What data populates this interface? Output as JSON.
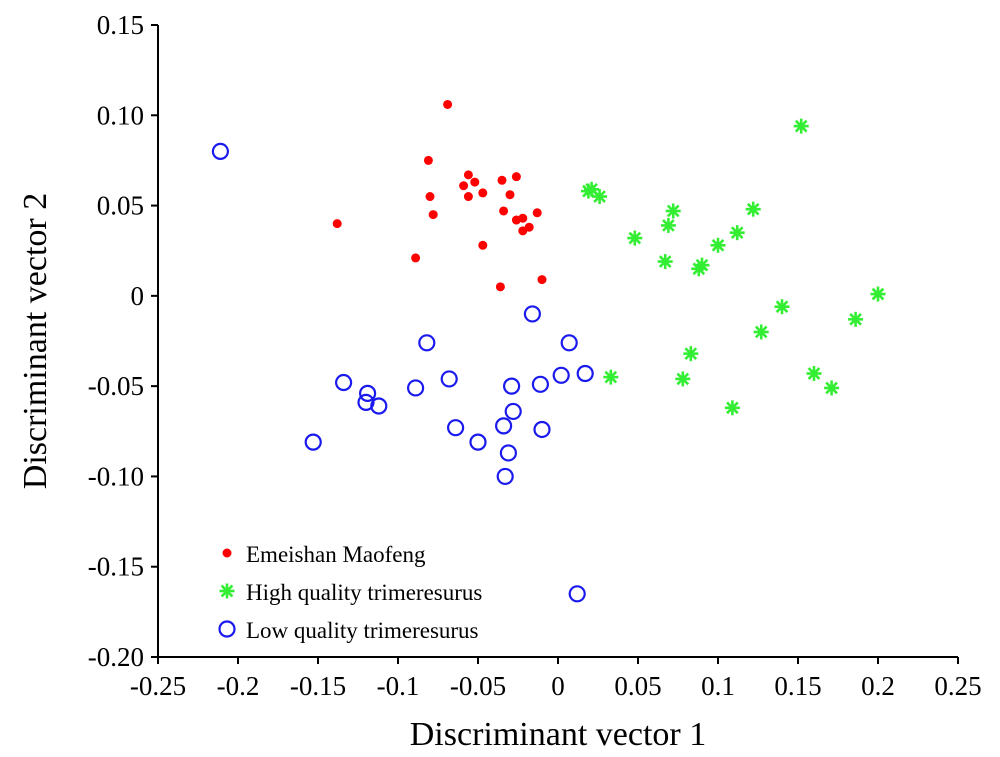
{
  "chart_data": {
    "type": "scatter",
    "title": "",
    "xlabel": "Discriminant vector 1",
    "ylabel": "Discriminant vector 2",
    "xlim": [
      -0.25,
      0.25
    ],
    "ylim": [
      -0.2,
      0.15
    ],
    "xticks": [
      "-0.25",
      "-0.2",
      "-0.15",
      "-0.1",
      "-0.05",
      "0",
      "0.05",
      "0.1",
      "0.15",
      "0.2",
      "0.25"
    ],
    "xtick_values": [
      -0.25,
      -0.2,
      -0.15,
      -0.1,
      -0.05,
      0,
      0.05,
      0.1,
      0.15,
      0.2,
      0.25
    ],
    "yticks": [
      "0.15",
      "0.10",
      "0.05",
      "0",
      "-0.05",
      "-0.10",
      "-0.15",
      "-0.20"
    ],
    "ytick_values": [
      0.15,
      0.1,
      0.05,
      0,
      -0.05,
      -0.1,
      -0.15,
      -0.2
    ],
    "grid": false,
    "legend_position": "bottom-left",
    "series": [
      {
        "name": "Emeishan Maofeng",
        "marker": "dot",
        "color": "#ff0000",
        "points": [
          [
            -0.069,
            0.106
          ],
          [
            -0.081,
            0.075
          ],
          [
            -0.056,
            0.067
          ],
          [
            -0.052,
            0.063
          ],
          [
            -0.059,
            0.061
          ],
          [
            -0.035,
            0.064
          ],
          [
            -0.026,
            0.066
          ],
          [
            -0.08,
            0.055
          ],
          [
            -0.056,
            0.055
          ],
          [
            -0.047,
            0.057
          ],
          [
            -0.03,
            0.056
          ],
          [
            -0.034,
            0.047
          ],
          [
            -0.078,
            0.045
          ],
          [
            -0.026,
            0.042
          ],
          [
            -0.022,
            0.043
          ],
          [
            -0.013,
            0.046
          ],
          [
            -0.138,
            0.04
          ],
          [
            -0.018,
            0.038
          ],
          [
            -0.022,
            0.036
          ],
          [
            -0.047,
            0.028
          ],
          [
            -0.089,
            0.021
          ],
          [
            -0.01,
            0.009
          ],
          [
            -0.036,
            0.005
          ]
        ]
      },
      {
        "name": "High quality trimeresurus",
        "marker": "star",
        "color": "#33ee33",
        "points": [
          [
            0.152,
            0.094
          ],
          [
            0.019,
            0.058
          ],
          [
            0.021,
            0.059
          ],
          [
            0.026,
            0.055
          ],
          [
            0.072,
            0.047
          ],
          [
            0.122,
            0.048
          ],
          [
            0.069,
            0.039
          ],
          [
            0.112,
            0.035
          ],
          [
            0.048,
            0.032
          ],
          [
            0.1,
            0.028
          ],
          [
            0.067,
            0.019
          ],
          [
            0.09,
            0.017
          ],
          [
            0.088,
            0.015
          ],
          [
            0.2,
            0.001
          ],
          [
            0.14,
            -0.006
          ],
          [
            0.186,
            -0.013
          ],
          [
            0.127,
            -0.02
          ],
          [
            0.083,
            -0.032
          ],
          [
            0.033,
            -0.045
          ],
          [
            0.078,
            -0.046
          ],
          [
            0.16,
            -0.043
          ],
          [
            0.171,
            -0.051
          ],
          [
            0.109,
            -0.062
          ]
        ]
      },
      {
        "name": "Low quality trimeresurus",
        "marker": "circle",
        "color": "#1a1aee",
        "points": [
          [
            -0.211,
            0.08
          ],
          [
            -0.016,
            -0.01
          ],
          [
            -0.082,
            -0.026
          ],
          [
            0.007,
            -0.026
          ],
          [
            -0.134,
            -0.048
          ],
          [
            -0.068,
            -0.046
          ],
          [
            -0.089,
            -0.051
          ],
          [
            -0.119,
            -0.054
          ],
          [
            0.017,
            -0.043
          ],
          [
            0.002,
            -0.044
          ],
          [
            -0.029,
            -0.05
          ],
          [
            -0.011,
            -0.049
          ],
          [
            -0.12,
            -0.059
          ],
          [
            -0.112,
            -0.061
          ],
          [
            -0.028,
            -0.064
          ],
          [
            -0.064,
            -0.073
          ],
          [
            -0.034,
            -0.072
          ],
          [
            -0.01,
            -0.074
          ],
          [
            -0.153,
            -0.081
          ],
          [
            -0.05,
            -0.081
          ],
          [
            -0.031,
            -0.087
          ],
          [
            -0.033,
            -0.1
          ],
          [
            0.012,
            -0.165
          ]
        ]
      }
    ]
  }
}
